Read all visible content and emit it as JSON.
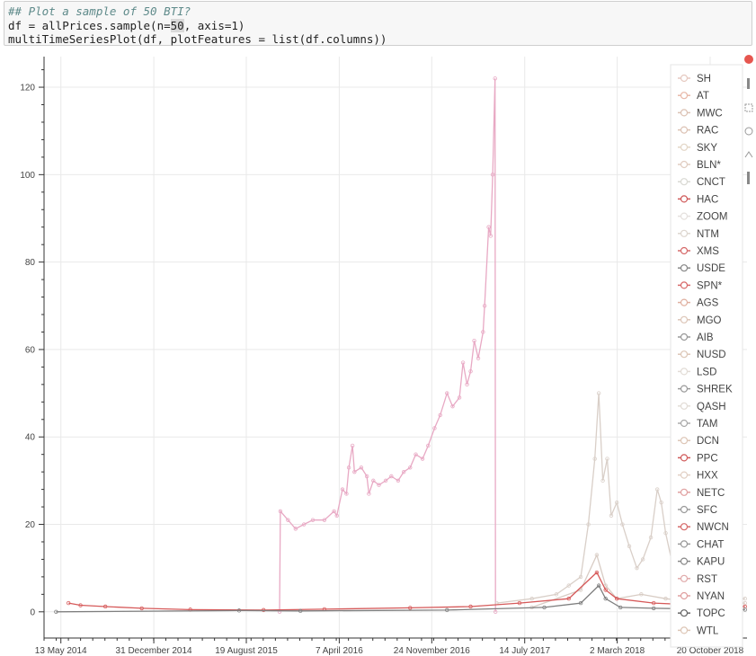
{
  "code_cell": {
    "comment": "## Plot a sample of 50 BTI?",
    "line2_pre": "df = allPrices.sample(n=",
    "line2_hl": "50",
    "line2_post": ", axis=1)",
    "line3": "multiTimeSeriesPlot(df, plotFeatures = list(df.columns))"
  },
  "toolbar": {
    "icons": [
      "bokeh-logo-icon",
      "pan-icon",
      "box-zoom-icon",
      "wheel-zoom-icon",
      "save-icon",
      "reset-icon",
      "hover-icon"
    ]
  },
  "chart_data": {
    "type": "line",
    "ylim": [
      -6,
      127
    ],
    "y_ticks": [
      0,
      20,
      40,
      60,
      80,
      100,
      120
    ],
    "x_range": [
      "2014-04-01",
      "2019-01-20"
    ],
    "x_ticks": [
      {
        "date": "2014-05-13",
        "label": "13 May 2014"
      },
      {
        "date": "2014-12-31",
        "label": "31 December 2014"
      },
      {
        "date": "2015-08-19",
        "label": "19 August 2015"
      },
      {
        "date": "2016-04-07",
        "label": "7 April 2016"
      },
      {
        "date": "2016-11-24",
        "label": "24 November 2016"
      },
      {
        "date": "2017-07-14",
        "label": "14 July 2017"
      },
      {
        "date": "2018-03-02",
        "label": "2 March 2018"
      },
      {
        "date": "2018-10-20",
        "label": "20 October 2018"
      }
    ],
    "legend": [
      {
        "name": "SH",
        "color": "#e6c9c0"
      },
      {
        "name": "AT",
        "color": "#e8b8a8"
      },
      {
        "name": "MWC",
        "color": "#dcc2b4"
      },
      {
        "name": "RAC",
        "color": "#dcc2b4"
      },
      {
        "name": "SKY",
        "color": "#e3d6c6"
      },
      {
        "name": "BLN*",
        "color": "#e0ccc0"
      },
      {
        "name": "CNCT",
        "color": "#d9d9d3"
      },
      {
        "name": "HAC",
        "color": "#d05a5a"
      },
      {
        "name": "ZOOM",
        "color": "#e5e0dd"
      },
      {
        "name": "NTM",
        "color": "#ddd6cf"
      },
      {
        "name": "XMS",
        "color": "#d66a6a"
      },
      {
        "name": "USDE",
        "color": "#888888"
      },
      {
        "name": "SPN*",
        "color": "#d86a6a"
      },
      {
        "name": "AGS",
        "color": "#e0b0a0"
      },
      {
        "name": "MGO",
        "color": "#ddc6b8"
      },
      {
        "name": "AIB",
        "color": "#999999"
      },
      {
        "name": "NUSD",
        "color": "#dcc6b6"
      },
      {
        "name": "LSD",
        "color": "#e2dcd6"
      },
      {
        "name": "SHREK",
        "color": "#9a9a9a"
      },
      {
        "name": "QASH",
        "color": "#e2dcd6"
      },
      {
        "name": "TAM",
        "color": "#aaaaaa"
      },
      {
        "name": "DCN",
        "color": "#ddc6b6"
      },
      {
        "name": "PPC",
        "color": "#d05a5a"
      },
      {
        "name": "HXX",
        "color": "#e2d0c4"
      },
      {
        "name": "NETC",
        "color": "#e0a0a0"
      },
      {
        "name": "SFC",
        "color": "#9a9a9a"
      },
      {
        "name": "NWCN",
        "color": "#d66a6a"
      },
      {
        "name": "CHAT",
        "color": "#999999"
      },
      {
        "name": "KAPU",
        "color": "#888888"
      },
      {
        "name": "RST",
        "color": "#e0aaaa"
      },
      {
        "name": "NYAN",
        "color": "#e0a0a0"
      },
      {
        "name": "TOPC",
        "color": "#666666"
      },
      {
        "name": "WTL",
        "color": "#ddc6b6"
      }
    ],
    "series": [
      {
        "name": "pink",
        "color": "#e8a9c4",
        "points": [
          [
            "2015-11-10",
            0
          ],
          [
            "2015-11-12",
            23
          ],
          [
            "2015-12-01",
            21
          ],
          [
            "2015-12-20",
            19
          ],
          [
            "2016-01-10",
            20
          ],
          [
            "2016-02-01",
            21
          ],
          [
            "2016-03-01",
            21
          ],
          [
            "2016-03-25",
            23
          ],
          [
            "2016-04-01",
            22
          ],
          [
            "2016-04-15",
            28
          ],
          [
            "2016-04-25",
            27
          ],
          [
            "2016-05-01",
            33
          ],
          [
            "2016-05-10",
            38
          ],
          [
            "2016-05-15",
            32
          ],
          [
            "2016-06-01",
            33
          ],
          [
            "2016-06-15",
            31
          ],
          [
            "2016-06-20",
            27
          ],
          [
            "2016-07-01",
            30
          ],
          [
            "2016-07-15",
            29
          ],
          [
            "2016-08-01",
            30
          ],
          [
            "2016-08-15",
            31
          ],
          [
            "2016-09-01",
            30
          ],
          [
            "2016-09-15",
            32
          ],
          [
            "2016-10-01",
            33
          ],
          [
            "2016-10-15",
            36
          ],
          [
            "2016-11-01",
            35
          ],
          [
            "2016-11-15",
            38
          ],
          [
            "2016-12-01",
            42
          ],
          [
            "2016-12-15",
            45
          ],
          [
            "2017-01-01",
            50
          ],
          [
            "2017-01-15",
            47
          ],
          [
            "2017-02-01",
            49
          ],
          [
            "2017-02-10",
            57
          ],
          [
            "2017-02-20",
            52
          ],
          [
            "2017-03-01",
            55
          ],
          [
            "2017-03-10",
            62
          ],
          [
            "2017-03-20",
            58
          ],
          [
            "2017-04-01",
            64
          ],
          [
            "2017-04-05",
            70
          ],
          [
            "2017-04-15",
            88
          ],
          [
            "2017-04-20",
            86
          ],
          [
            "2017-04-25",
            100
          ],
          [
            "2017-05-01",
            122
          ],
          [
            "2017-05-02",
            0
          ]
        ]
      },
      {
        "name": "beige",
        "color": "#d9cfc8",
        "points": [
          [
            "2017-05-05",
            2
          ],
          [
            "2017-08-01",
            3
          ],
          [
            "2017-10-01",
            4
          ],
          [
            "2017-11-01",
            6
          ],
          [
            "2017-12-01",
            8
          ],
          [
            "2017-12-20",
            20
          ],
          [
            "2018-01-05",
            35
          ],
          [
            "2018-01-15",
            50
          ],
          [
            "2018-01-25",
            30
          ],
          [
            "2018-02-05",
            35
          ],
          [
            "2018-02-15",
            22
          ],
          [
            "2018-03-01",
            25
          ],
          [
            "2018-03-15",
            20
          ],
          [
            "2018-04-01",
            15
          ],
          [
            "2018-04-20",
            10
          ],
          [
            "2018-05-05",
            12
          ],
          [
            "2018-05-25",
            17
          ],
          [
            "2018-06-10",
            28
          ],
          [
            "2018-06-20",
            25
          ],
          [
            "2018-07-01",
            18
          ],
          [
            "2018-07-20",
            10
          ],
          [
            "2018-08-05",
            6
          ],
          [
            "2018-09-01",
            5
          ],
          [
            "2018-10-01",
            4
          ],
          [
            "2018-11-01",
            4
          ],
          [
            "2018-12-01",
            3
          ],
          [
            "2019-01-15",
            3
          ]
        ]
      },
      {
        "name": "beige2",
        "color": "#d8ccc4",
        "points": [
          [
            "2017-08-01",
            1
          ],
          [
            "2017-12-01",
            5
          ],
          [
            "2018-01-10",
            13
          ],
          [
            "2018-02-01",
            6
          ],
          [
            "2018-03-01",
            3
          ],
          [
            "2018-05-01",
            4
          ],
          [
            "2018-07-01",
            3
          ],
          [
            "2018-10-01",
            2
          ],
          [
            "2019-01-15",
            2
          ]
        ]
      },
      {
        "name": "red",
        "color": "#d65a5a",
        "points": [
          [
            "2014-06-01",
            2
          ],
          [
            "2014-07-01",
            1.5
          ],
          [
            "2014-09-01",
            1.2
          ],
          [
            "2014-12-01",
            0.8
          ],
          [
            "2015-04-01",
            0.5
          ],
          [
            "2015-10-01",
            0.4
          ],
          [
            "2016-03-01",
            0.6
          ],
          [
            "2016-10-01",
            0.9
          ],
          [
            "2017-03-01",
            1.2
          ],
          [
            "2017-07-01",
            2
          ],
          [
            "2017-11-01",
            3
          ],
          [
            "2018-01-10",
            9
          ],
          [
            "2018-02-01",
            5
          ],
          [
            "2018-03-01",
            3
          ],
          [
            "2018-06-01",
            2
          ],
          [
            "2018-10-01",
            1.5
          ],
          [
            "2019-01-15",
            1.2
          ]
        ]
      },
      {
        "name": "grey",
        "color": "#7f7f7f",
        "points": [
          [
            "2014-05-01",
            0
          ],
          [
            "2015-08-01",
            0.3
          ],
          [
            "2016-01-01",
            0.2
          ],
          [
            "2017-01-01",
            0.4
          ],
          [
            "2017-09-01",
            1
          ],
          [
            "2017-12-01",
            2
          ],
          [
            "2018-01-15",
            6
          ],
          [
            "2018-02-01",
            3
          ],
          [
            "2018-03-10",
            1
          ],
          [
            "2018-06-01",
            0.8
          ],
          [
            "2019-01-15",
            0.5
          ]
        ]
      }
    ]
  }
}
